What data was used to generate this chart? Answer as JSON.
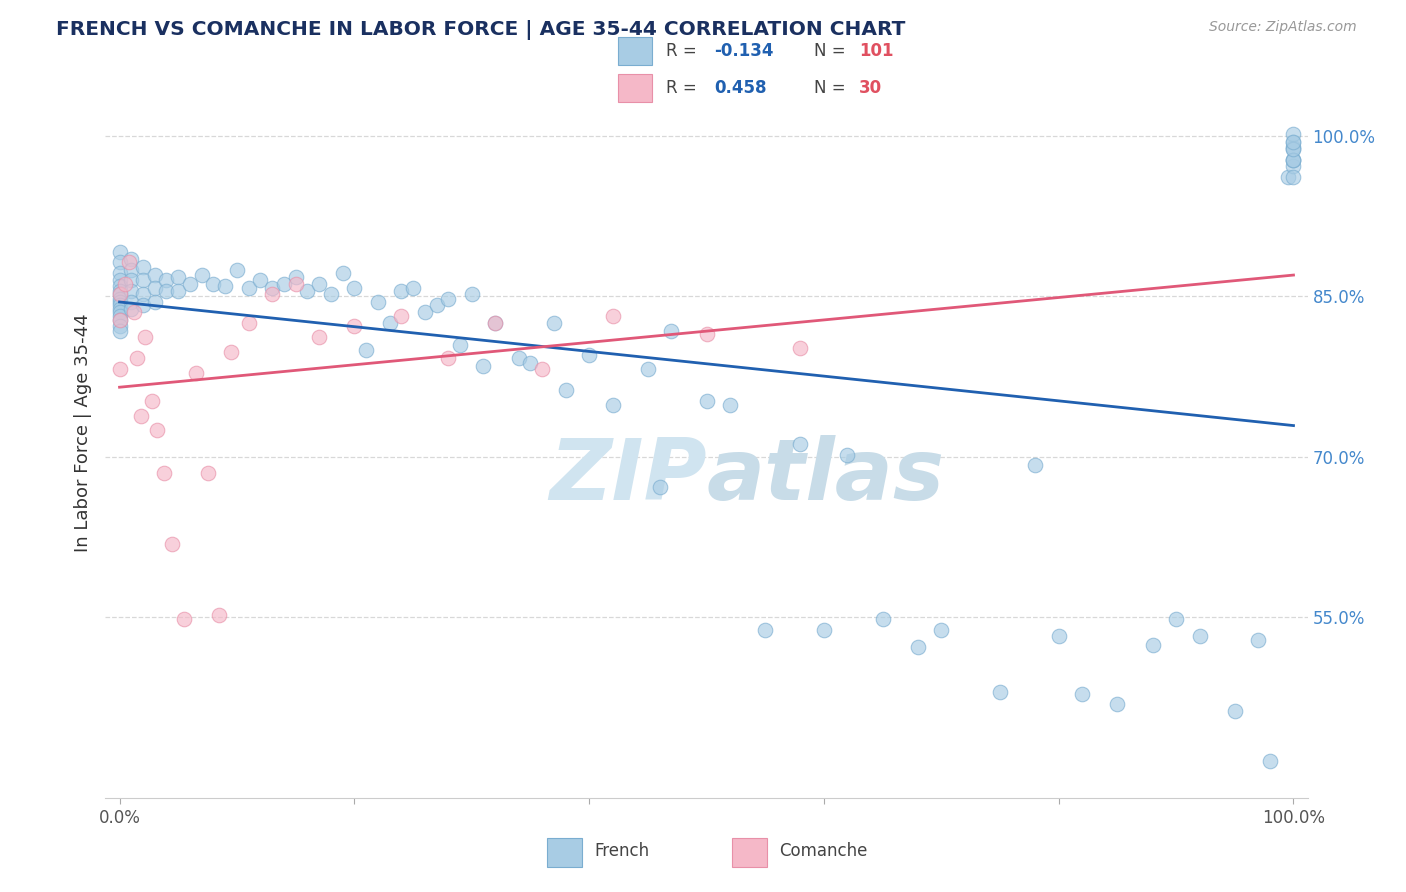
{
  "title": "FRENCH VS COMANCHE IN LABOR FORCE | AGE 35-44 CORRELATION CHART",
  "source_text": "Source: ZipAtlas.com",
  "ylabel": "In Labor Force | Age 35-44",
  "xlim": [
    -0.012,
    1.012
  ],
  "ylim": [
    0.38,
    1.065
  ],
  "xtick_positions": [
    0.0,
    0.2,
    0.4,
    0.6,
    0.8,
    1.0
  ],
  "xticklabels": [
    "0.0%",
    "",
    "",
    "",
    "",
    "100.0%"
  ],
  "ytick_positions": [
    0.55,
    0.7,
    0.85,
    1.0
  ],
  "ytick_labels": [
    "55.0%",
    "70.0%",
    "85.0%",
    "100.0%"
  ],
  "french_R": -0.134,
  "french_N": 101,
  "comanche_R": 0.458,
  "comanche_N": 30,
  "french_color": "#a8cce4",
  "french_edge_color": "#7aadd0",
  "comanche_color": "#f5b8c8",
  "comanche_edge_color": "#e890a8",
  "french_line_color": "#2060b0",
  "comanche_line_color": "#e05878",
  "title_color": "#1a3060",
  "legend_R_color": "#2060b0",
  "legend_N_color": "#e05060",
  "watermark_color": "#d0e4f0",
  "background_color": "#ffffff",
  "grid_color": "#d8d8d8",
  "tick_color": "#4488cc",
  "axis_label_color": "#333333",
  "french_x": [
    0.0,
    0.0,
    0.0,
    0.0,
    0.0,
    0.0,
    0.0,
    0.0,
    0.0,
    0.0,
    0.0,
    0.0,
    0.0,
    0.0,
    0.0,
    0.0,
    0.01,
    0.01,
    0.01,
    0.01,
    0.01,
    0.01,
    0.02,
    0.02,
    0.02,
    0.02,
    0.03,
    0.03,
    0.03,
    0.04,
    0.04,
    0.05,
    0.05,
    0.06,
    0.07,
    0.08,
    0.09,
    0.1,
    0.11,
    0.12,
    0.13,
    0.14,
    0.15,
    0.16,
    0.17,
    0.18,
    0.19,
    0.2,
    0.21,
    0.22,
    0.23,
    0.24,
    0.25,
    0.26,
    0.27,
    0.28,
    0.29,
    0.3,
    0.31,
    0.32,
    0.34,
    0.35,
    0.37,
    0.38,
    0.4,
    0.42,
    0.45,
    0.46,
    0.47,
    0.5,
    0.52,
    0.55,
    0.58,
    0.6,
    0.62,
    0.65,
    0.68,
    0.7,
    0.75,
    0.78,
    0.8,
    0.82,
    0.85,
    0.88,
    0.9,
    0.92,
    0.95,
    0.97,
    0.98,
    0.995,
    1.0,
    1.0,
    1.0,
    1.0,
    1.0,
    1.0,
    1.0,
    1.0,
    1.0,
    1.0,
    1.0
  ],
  "french_y": [
    0.892,
    0.882,
    0.872,
    0.865,
    0.86,
    0.855,
    0.852,
    0.848,
    0.845,
    0.842,
    0.838,
    0.835,
    0.832,
    0.828,
    0.822,
    0.818,
    0.885,
    0.875,
    0.865,
    0.855,
    0.845,
    0.838,
    0.878,
    0.865,
    0.852,
    0.842,
    0.87,
    0.858,
    0.845,
    0.865,
    0.855,
    0.868,
    0.855,
    0.862,
    0.87,
    0.862,
    0.86,
    0.875,
    0.858,
    0.865,
    0.858,
    0.862,
    0.868,
    0.855,
    0.862,
    0.852,
    0.872,
    0.858,
    0.8,
    0.845,
    0.825,
    0.855,
    0.858,
    0.835,
    0.842,
    0.848,
    0.805,
    0.852,
    0.785,
    0.825,
    0.792,
    0.788,
    0.825,
    0.762,
    0.795,
    0.748,
    0.782,
    0.672,
    0.818,
    0.752,
    0.748,
    0.538,
    0.712,
    0.538,
    0.702,
    0.548,
    0.522,
    0.538,
    0.48,
    0.692,
    0.532,
    0.478,
    0.468,
    0.524,
    0.548,
    0.532,
    0.462,
    0.528,
    0.415,
    0.962,
    0.978,
    0.972,
    0.99,
    0.995,
    1.002,
    0.988,
    0.978,
    0.962,
    0.978,
    0.988,
    0.995
  ],
  "comanche_x": [
    0.0,
    0.0,
    0.0,
    0.005,
    0.008,
    0.012,
    0.015,
    0.018,
    0.022,
    0.028,
    0.032,
    0.038,
    0.045,
    0.055,
    0.065,
    0.075,
    0.085,
    0.095,
    0.11,
    0.13,
    0.15,
    0.17,
    0.2,
    0.24,
    0.28,
    0.32,
    0.36,
    0.42,
    0.5,
    0.58
  ],
  "comanche_y": [
    0.852,
    0.828,
    0.782,
    0.862,
    0.882,
    0.835,
    0.792,
    0.738,
    0.812,
    0.752,
    0.725,
    0.685,
    0.618,
    0.548,
    0.778,
    0.685,
    0.552,
    0.798,
    0.825,
    0.852,
    0.862,
    0.812,
    0.822,
    0.832,
    0.792,
    0.825,
    0.782,
    0.832,
    0.815,
    0.802
  ]
}
